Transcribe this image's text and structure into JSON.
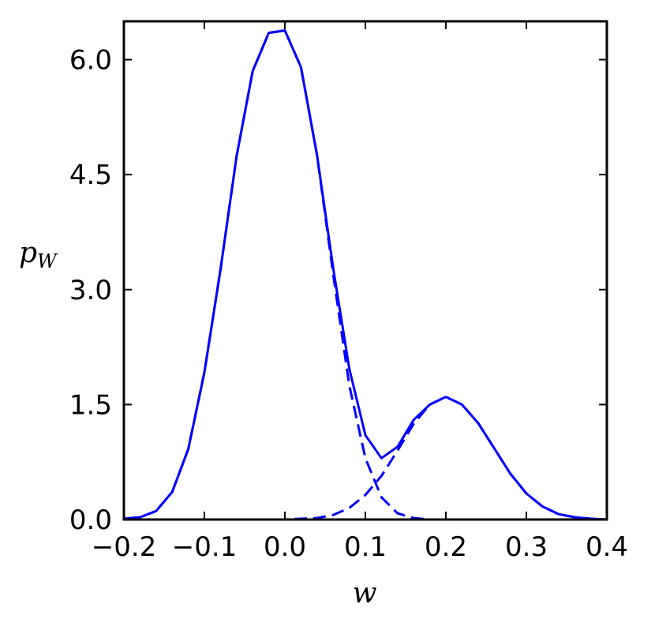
{
  "chart_data": {
    "type": "line",
    "xlabel": "w",
    "ylabel": "p",
    "ylabel_sub": "W",
    "xlim": [
      -0.2,
      0.4
    ],
    "ylim": [
      0.0,
      6.5
    ],
    "x_ticks": [
      -0.2,
      -0.1,
      0.0,
      0.1,
      0.2,
      0.3,
      0.4
    ],
    "x_tick_labels": [
      "−0.2",
      "−0.1",
      "0.0",
      "0.1",
      "0.2",
      "0.3",
      "0.4"
    ],
    "y_ticks": [
      0.0,
      1.5,
      3.0,
      4.5,
      6.0
    ],
    "y_tick_labels": [
      "0.0",
      "1.5",
      "3.0",
      "4.5",
      "6.0"
    ],
    "grid": false,
    "color": "#0000ff",
    "series": [
      {
        "style": "solid",
        "x": [
          -0.2,
          -0.18,
          -0.16,
          -0.14,
          -0.12,
          -0.1,
          -0.08,
          -0.06,
          -0.04,
          -0.02,
          0.0,
          0.02,
          0.04,
          0.06,
          0.08,
          0.1,
          0.12,
          0.14,
          0.16,
          0.18,
          0.2,
          0.22,
          0.24,
          0.26,
          0.28,
          0.3,
          0.32,
          0.34,
          0.36,
          0.38,
          0.4
        ],
        "y": [
          0.01,
          0.03,
          0.11,
          0.36,
          0.92,
          1.92,
          3.26,
          4.74,
          5.85,
          6.35,
          6.38,
          5.9,
          4.75,
          3.28,
          1.97,
          1.1,
          0.8,
          0.95,
          1.3,
          1.5,
          1.6,
          1.5,
          1.26,
          0.93,
          0.6,
          0.34,
          0.17,
          0.07,
          0.03,
          0.01,
          0.0
        ]
      },
      {
        "style": "dashed",
        "x": [
          -0.2,
          -0.18,
          -0.16,
          -0.14,
          -0.12,
          -0.1,
          -0.08,
          -0.06,
          -0.04,
          -0.02,
          0.0,
          0.02,
          0.04,
          0.06,
          0.08,
          0.1,
          0.12,
          0.14,
          0.16,
          0.18,
          0.2,
          0.22,
          0.24,
          0.26,
          0.28,
          0.3,
          0.32,
          0.34,
          0.36,
          0.38,
          0.4
        ],
        "y": [
          0.01,
          0.03,
          0.11,
          0.36,
          0.92,
          1.92,
          3.26,
          4.74,
          5.85,
          6.35,
          6.38,
          5.9,
          4.75,
          3.2,
          1.75,
          0.8,
          0.29,
          0.08,
          0.02,
          0.0,
          0.0,
          0.0,
          0.0,
          0.0,
          0.0,
          0.0,
          0.0,
          0.0,
          0.0,
          0.0,
          0.0
        ]
      },
      {
        "style": "dashed",
        "x": [
          -0.2,
          -0.1,
          0.0,
          0.02,
          0.04,
          0.06,
          0.08,
          0.1,
          0.12,
          0.14,
          0.16,
          0.18,
          0.2,
          0.22,
          0.24,
          0.26,
          0.28,
          0.3,
          0.32,
          0.34,
          0.36,
          0.38,
          0.4
        ],
        "y": [
          0.0,
          0.0,
          0.0,
          0.01,
          0.02,
          0.06,
          0.15,
          0.32,
          0.57,
          0.9,
          1.25,
          1.5,
          1.6,
          1.5,
          1.26,
          0.93,
          0.6,
          0.34,
          0.17,
          0.07,
          0.03,
          0.01,
          0.0
        ]
      }
    ]
  }
}
